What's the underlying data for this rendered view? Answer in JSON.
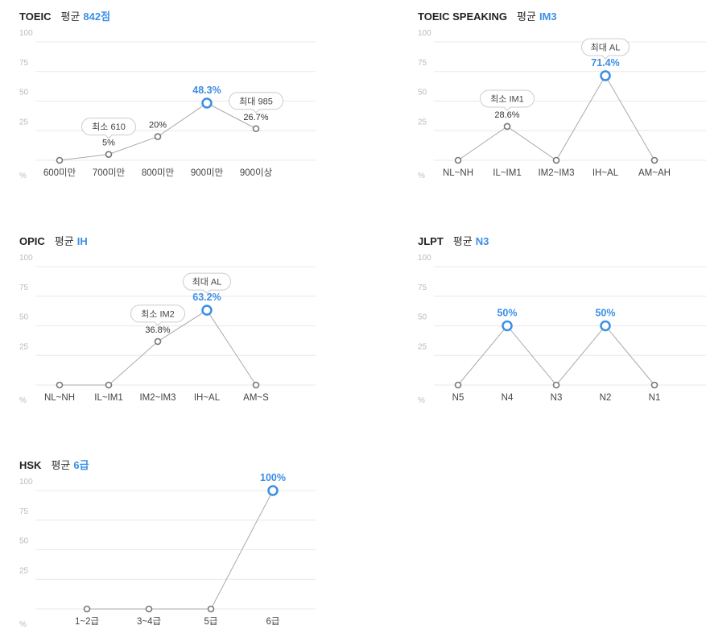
{
  "charts": [
    {
      "title": "TOEIC",
      "avg_label": "평균",
      "avg_value": "842점",
      "colors": {
        "line": "#aaaaaa",
        "point": "#777777",
        "highlight": "#3b8fe6",
        "grid": "#e8e8e8"
      },
      "chart_data": {
        "type": "line",
        "categories": [
          "600미만",
          "700미만",
          "800미만",
          "900미만",
          "900이상"
        ],
        "values": [
          0,
          5,
          20,
          48.3,
          26.7
        ],
        "labels": [
          "",
          "5%",
          "20%",
          "48.3%",
          "26.7%"
        ],
        "highlight_index": 3,
        "ylim": [
          0,
          100
        ],
        "yticks": [
          "100",
          "75",
          "50",
          "25"
        ],
        "yunit": "%",
        "annotations": [
          {
            "index": 1,
            "text": "최소 610"
          },
          {
            "index": 4,
            "text": "최대 985"
          }
        ]
      }
    },
    {
      "title": "TOEIC SPEAKING",
      "avg_label": "평균",
      "avg_value": "IM3",
      "colors": {
        "line": "#aaaaaa",
        "point": "#777777",
        "highlight": "#3b8fe6",
        "grid": "#e8e8e8"
      },
      "chart_data": {
        "type": "line",
        "categories": [
          "NL~NH",
          "IL~IM1",
          "IM2~IM3",
          "IH~AL",
          "AM~AH"
        ],
        "values": [
          0,
          28.6,
          0,
          71.4,
          0
        ],
        "labels": [
          "",
          "28.6%",
          "",
          "71.4%",
          ""
        ],
        "highlight_index": 3,
        "ylim": [
          0,
          100
        ],
        "yticks": [
          "100",
          "75",
          "50",
          "25"
        ],
        "yunit": "%",
        "annotations": [
          {
            "index": 1,
            "text": "최소 IM1"
          },
          {
            "index": 3,
            "text": "최대 AL"
          }
        ]
      }
    },
    {
      "title": "OPIC",
      "avg_label": "평균",
      "avg_value": "IH",
      "colors": {
        "line": "#aaaaaa",
        "point": "#777777",
        "highlight": "#3b8fe6",
        "grid": "#e8e8e8"
      },
      "chart_data": {
        "type": "line",
        "categories": [
          "NL~NH",
          "IL~IM1",
          "IM2~IM3",
          "IH~AL",
          "AM~S"
        ],
        "values": [
          0,
          0,
          36.8,
          63.2,
          0
        ],
        "labels": [
          "",
          "",
          "36.8%",
          "63.2%",
          ""
        ],
        "highlight_index": 3,
        "ylim": [
          0,
          100
        ],
        "yticks": [
          "100",
          "75",
          "50",
          "25"
        ],
        "yunit": "%",
        "annotations": [
          {
            "index": 2,
            "text": "최소 IM2"
          },
          {
            "index": 3,
            "text": "최대 AL"
          }
        ]
      }
    },
    {
      "title": "JLPT",
      "avg_label": "평균",
      "avg_value": "N3",
      "colors": {
        "line": "#aaaaaa",
        "point": "#777777",
        "highlight": "#3b8fe6",
        "grid": "#e8e8e8"
      },
      "chart_data": {
        "type": "line",
        "categories": [
          "N5",
          "N4",
          "N3",
          "N2",
          "N1"
        ],
        "values": [
          0,
          50,
          0,
          50,
          0
        ],
        "labels": [
          "",
          "50%",
          "",
          "50%",
          ""
        ],
        "highlight_index": [
          1,
          3
        ],
        "ylim": [
          0,
          100
        ],
        "yticks": [
          "100",
          "75",
          "50",
          "25"
        ],
        "yunit": "%",
        "annotations": []
      }
    },
    {
      "title": "HSK",
      "avg_label": "평균",
      "avg_value": "6급",
      "colors": {
        "line": "#aaaaaa",
        "point": "#777777",
        "highlight": "#3b8fe6",
        "grid": "#e8e8e8"
      },
      "chart_data": {
        "type": "line",
        "categories": [
          "1~2급",
          "3~4급",
          "5급",
          "6급"
        ],
        "values": [
          0,
          0,
          0,
          100
        ],
        "labels": [
          "",
          "",
          "",
          "100%"
        ],
        "highlight_index": 3,
        "ylim": [
          0,
          100
        ],
        "yticks": [
          "100",
          "75",
          "50",
          "25"
        ],
        "yunit": "%",
        "annotations": []
      }
    }
  ]
}
